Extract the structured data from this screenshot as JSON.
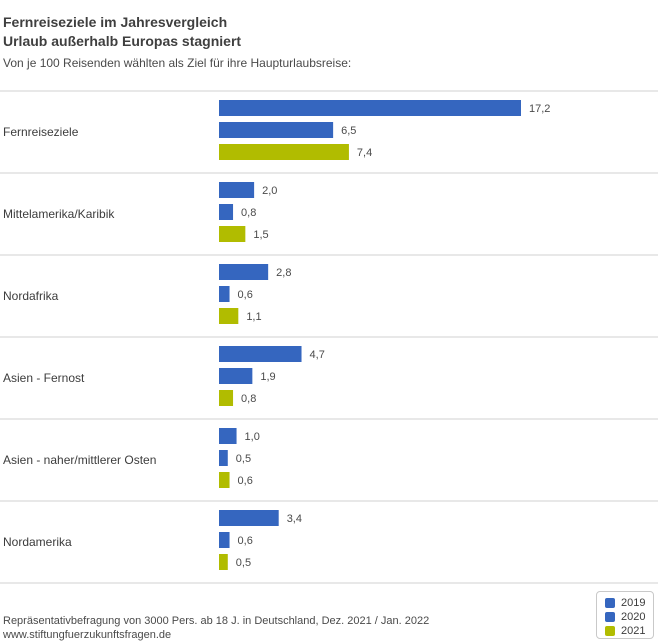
{
  "title": {
    "line1": "Fernreiseziele im Jahresvergleich",
    "line2": "Urlaub außerhalb Europas stagniert"
  },
  "subtitle": "Von je 100 Reisenden wählten als Ziel für ihre Haupturlaubsreise:",
  "footer": {
    "line1": "Repräsentativbefragung von 3000 Pers. ab 18 J. in Deutschland, Dez. 2021 / Jan. 2022",
    "line2": "www.stiftungfuerzukunftsfragen.de"
  },
  "colors": {
    "2019": "#3566bf",
    "2020": "#3566bf",
    "2021": "#b1bc00"
  },
  "chart_data": {
    "type": "bar",
    "orientation": "horizontal",
    "categories": [
      "Fernreiseziele",
      "Mittelamerika/Karibik",
      "Nordafrika",
      "Asien - Fernost",
      "Asien - naher/mittlerer Osten",
      "Nordamerika"
    ],
    "series": [
      {
        "name": "2019",
        "values": [
          17.2,
          2.0,
          2.8,
          4.7,
          1.0,
          3.4
        ]
      },
      {
        "name": "2020",
        "values": [
          6.5,
          0.8,
          0.6,
          1.9,
          0.5,
          0.6
        ]
      },
      {
        "name": "2021",
        "values": [
          7.4,
          1.5,
          1.1,
          0.8,
          0.6,
          0.5
        ]
      }
    ],
    "value_labels": [
      [
        "17,2",
        "6,5",
        "7,4"
      ],
      [
        "2,0",
        "0,8",
        "1,5"
      ],
      [
        "2,8",
        "0,6",
        "1,1"
      ],
      [
        "4,7",
        "1,9",
        "0,8"
      ],
      [
        "1,0",
        "0,5",
        "0,6"
      ],
      [
        "3,4",
        "0,6",
        "0,5"
      ]
    ],
    "xlim": [
      0,
      17.2
    ],
    "legend": "bottom-right",
    "grid": false
  }
}
